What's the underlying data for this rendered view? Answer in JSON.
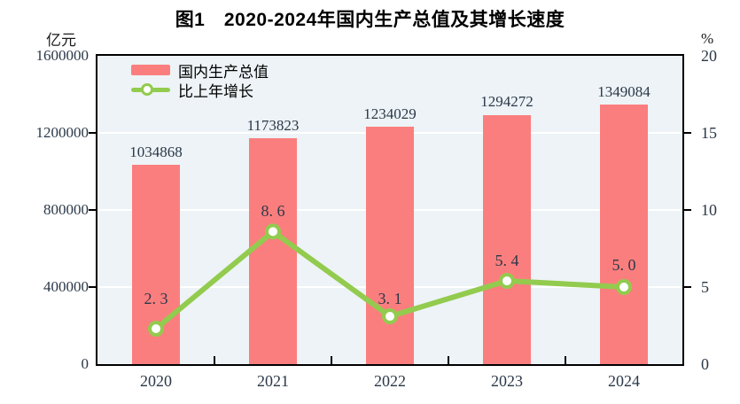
{
  "figure_title": "图1　2020-2024年国内生产总值及其增长速度",
  "colors": {
    "bar": "#FB7E7E",
    "line": "#92CB4E",
    "marker_fill": "#FFFFFF",
    "plot_background": "#EDF3F6",
    "gridline": "#FFFFFF",
    "axis": "#000000",
    "number_text": "#2B3848",
    "title_text": "#000000"
  },
  "legend": {
    "bar_label": "国内生产总值",
    "line_label": "比上年增长"
  },
  "chart_data": {
    "type": "bar",
    "subtype": "combo-bar-line",
    "title": "图1　2020-2024年国内生产总值及其增长速度",
    "categories": [
      "2020",
      "2021",
      "2022",
      "2023",
      "2024"
    ],
    "series": [
      {
        "name": "国内生产总值",
        "type": "bar",
        "axis": "left",
        "unit": "亿元",
        "color": "#FB7E7E",
        "values": [
          1034868,
          1173823,
          1234029,
          1294272,
          1349084
        ],
        "data_labels": [
          "1034868",
          "1173823",
          "1234029",
          "1294272",
          "1349084"
        ]
      },
      {
        "name": "比上年增长",
        "type": "line",
        "axis": "right",
        "unit": "%",
        "color": "#92CB4E",
        "values": [
          2.3,
          8.6,
          3.1,
          5.4,
          5.0
        ],
        "data_labels": [
          "2. 3",
          "8. 6",
          "3. 1",
          "5. 4",
          "5. 0"
        ]
      }
    ],
    "left_axis": {
      "label": "亿元",
      "range": [
        0,
        1600000
      ],
      "ticks": [
        1600000,
        1200000,
        800000,
        400000,
        0
      ],
      "tick_display": [
        "1600000",
        "1200000",
        "800000",
        "400000",
        "0"
      ]
    },
    "right_axis": {
      "label": "%",
      "range": [
        0,
        20
      ],
      "ticks": [
        20,
        15,
        10,
        5,
        0
      ],
      "tick_display": [
        "20",
        "15",
        "10",
        "5",
        "0"
      ]
    },
    "grid": true,
    "legend_position": "top-left-inside"
  }
}
